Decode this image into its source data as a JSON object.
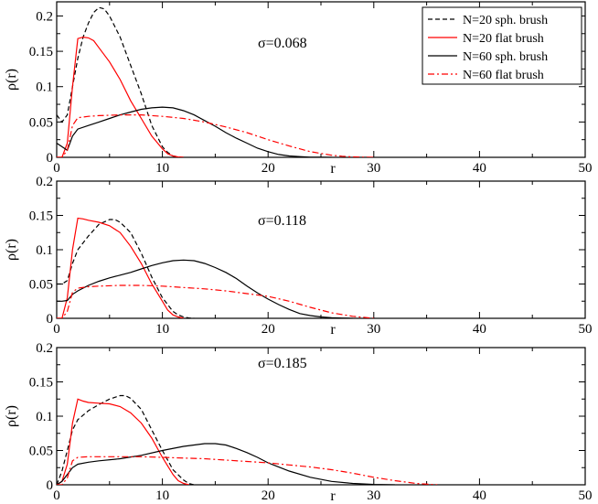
{
  "chart_data": [
    {
      "type": "line",
      "annotation": "σ=0.068",
      "xlabel": "r",
      "ylabel": "ρ(r)",
      "xlim": [
        0,
        50
      ],
      "ylim": [
        0,
        0.22
      ],
      "xticks": [
        "0",
        "10",
        "20",
        "30",
        "40",
        "50"
      ],
      "yticks": [
        "0",
        "0.05",
        "0.1",
        "0.15",
        "0.2"
      ],
      "ytick_values": [
        0,
        0.05,
        0.1,
        0.15,
        0.2
      ],
      "legend": {
        "position": "top-right"
      },
      "series": [
        {
          "name": "N=20 sph. brush",
          "color": "#000000",
          "dash": "dashed",
          "x": [
            0,
            0.5,
            1,
            1.5,
            2,
            2.5,
            3,
            3.5,
            4,
            4.5,
            5,
            5.5,
            6,
            7,
            8,
            9,
            10,
            10.5,
            11,
            11.5,
            12
          ],
          "y": [
            0.06,
            0.05,
            0.06,
            0.1,
            0.14,
            0.17,
            0.19,
            0.205,
            0.212,
            0.21,
            0.2,
            0.185,
            0.17,
            0.13,
            0.09,
            0.045,
            0.015,
            0.007,
            0.002,
            0.0005,
            0
          ]
        },
        {
          "name": "N=20 flat brush",
          "color": "#ff0000",
          "dash": "solid",
          "x": [
            0,
            0.5,
            1,
            1.5,
            2,
            2.5,
            3,
            3.5,
            4,
            5,
            6,
            7,
            8,
            9,
            10,
            10.5,
            11,
            11.5,
            12
          ],
          "y": [
            0,
            0,
            0.02,
            0.1,
            0.168,
            0.17,
            0.169,
            0.165,
            0.155,
            0.135,
            0.11,
            0.08,
            0.055,
            0.03,
            0.012,
            0.005,
            0.002,
            0.0005,
            0
          ]
        },
        {
          "name": "N=60 sph. brush",
          "color": "#000000",
          "dash": "solid",
          "x": [
            0,
            0.5,
            1,
            1.5,
            2,
            3,
            4,
            5,
            6,
            7,
            8,
            9,
            10,
            11,
            12,
            13,
            14,
            15,
            16,
            17,
            18,
            19,
            20,
            21,
            22,
            23,
            24,
            25,
            26
          ],
          "y": [
            0.02,
            0.015,
            0.01,
            0.03,
            0.04,
            0.045,
            0.05,
            0.055,
            0.06,
            0.064,
            0.068,
            0.07,
            0.071,
            0.07,
            0.066,
            0.06,
            0.052,
            0.044,
            0.035,
            0.027,
            0.02,
            0.013,
            0.008,
            0.004,
            0.002,
            0.001,
            0.0003,
            0.0001,
            0
          ]
        },
        {
          "name": "N=60 flat brush",
          "color": "#ff0000",
          "dash": "dashdot",
          "x": [
            0,
            0.5,
            1,
            1.5,
            2,
            3,
            4,
            6,
            8,
            10,
            12,
            14,
            16,
            18,
            20,
            22,
            24,
            26,
            27,
            28,
            29,
            30
          ],
          "y": [
            0,
            0,
            0.01,
            0.045,
            0.056,
            0.058,
            0.059,
            0.06,
            0.06,
            0.058,
            0.055,
            0.05,
            0.043,
            0.035,
            0.025,
            0.016,
            0.008,
            0.003,
            0.0015,
            0.0006,
            0.0002,
            0
          ]
        }
      ]
    },
    {
      "type": "line",
      "annotation": "σ=0.118",
      "xlabel": "r",
      "ylabel": "ρ(r)",
      "xlim": [
        0,
        50
      ],
      "ylim": [
        0,
        0.2
      ],
      "xticks": [
        "0",
        "10",
        "20",
        "30",
        "40",
        "50"
      ],
      "yticks": [
        "0",
        "0.05",
        "0.1",
        "0.15",
        "0.2"
      ],
      "ytick_values": [
        0,
        0.05,
        0.1,
        0.15,
        0.2
      ],
      "series": [
        {
          "name": "N=20 sph. brush",
          "color": "#000000",
          "dash": "dashed",
          "x": [
            0,
            0.5,
            1,
            1.5,
            2,
            3,
            4,
            5,
            5.5,
            6,
            7,
            8,
            9,
            10,
            11,
            11.5,
            12,
            12.5,
            13
          ],
          "y": [
            0.05,
            0.05,
            0.055,
            0.08,
            0.1,
            0.12,
            0.137,
            0.144,
            0.144,
            0.14,
            0.125,
            0.095,
            0.06,
            0.03,
            0.01,
            0.005,
            0.002,
            0.0005,
            0
          ]
        },
        {
          "name": "N=20 flat brush",
          "color": "#ff0000",
          "dash": "solid",
          "x": [
            0,
            0.5,
            1,
            1.5,
            2,
            2.5,
            3,
            4,
            5,
            6,
            7,
            8,
            9,
            10,
            10.5,
            11,
            11.5,
            12
          ],
          "y": [
            0,
            0,
            0.03,
            0.1,
            0.146,
            0.145,
            0.143,
            0.14,
            0.135,
            0.125,
            0.105,
            0.08,
            0.05,
            0.025,
            0.012,
            0.005,
            0.002,
            0
          ]
        },
        {
          "name": "N=60 sph. brush",
          "color": "#000000",
          "dash": "solid",
          "x": [
            0,
            0.5,
            1,
            1.5,
            2,
            3,
            4,
            5,
            6,
            7,
            8,
            9,
            10,
            11,
            12,
            13,
            14,
            15,
            16,
            17,
            18,
            19,
            20,
            21,
            22,
            23,
            24,
            25,
            26,
            27,
            28
          ],
          "y": [
            0.025,
            0.025,
            0.026,
            0.035,
            0.04,
            0.048,
            0.054,
            0.059,
            0.063,
            0.067,
            0.072,
            0.077,
            0.081,
            0.084,
            0.085,
            0.084,
            0.08,
            0.074,
            0.067,
            0.058,
            0.047,
            0.037,
            0.028,
            0.02,
            0.013,
            0.007,
            0.004,
            0.002,
            0.001,
            0.0004,
            0
          ]
        },
        {
          "name": "N=60 flat brush",
          "color": "#ff0000",
          "dash": "dashdot",
          "x": [
            0,
            0.5,
            1,
            1.5,
            2,
            3,
            4,
            6,
            8,
            10,
            12,
            14,
            16,
            18,
            20,
            22,
            24,
            26,
            28,
            30
          ],
          "y": [
            0,
            0,
            0.01,
            0.038,
            0.044,
            0.046,
            0.047,
            0.048,
            0.048,
            0.047,
            0.045,
            0.043,
            0.04,
            0.036,
            0.032,
            0.025,
            0.016,
            0.008,
            0.003,
            0
          ]
        }
      ]
    },
    {
      "type": "line",
      "annotation": "σ=0.185",
      "xlabel": "r",
      "ylabel": "ρ(r)",
      "xlim": [
        0,
        50
      ],
      "ylim": [
        0,
        0.2
      ],
      "xticks": [
        "0",
        "10",
        "20",
        "30",
        "40",
        "50"
      ],
      "yticks": [
        "0",
        "0.05",
        "0.1",
        "0.15",
        "0.2"
      ],
      "ytick_values": [
        0,
        0.05,
        0.1,
        0.15,
        0.2
      ],
      "series": [
        {
          "name": "N=20 sph. brush",
          "color": "#000000",
          "dash": "dashed",
          "x": [
            0,
            0.5,
            1,
            1.5,
            2,
            3,
            4,
            5,
            6,
            6.5,
            7,
            8,
            9,
            10,
            11,
            12,
            12.5,
            13
          ],
          "y": [
            0,
            0.02,
            0.05,
            0.08,
            0.095,
            0.108,
            0.117,
            0.125,
            0.13,
            0.13,
            0.126,
            0.11,
            0.08,
            0.05,
            0.022,
            0.007,
            0.002,
            0
          ]
        },
        {
          "name": "N=20 flat brush",
          "color": "#ff0000",
          "dash": "solid",
          "x": [
            0,
            0.5,
            1,
            1.5,
            2,
            2.5,
            3,
            4,
            5,
            6,
            7,
            8,
            9,
            10,
            11,
            11.5,
            12,
            12.5
          ],
          "y": [
            0,
            0.005,
            0.03,
            0.09,
            0.125,
            0.122,
            0.12,
            0.119,
            0.118,
            0.114,
            0.105,
            0.09,
            0.068,
            0.04,
            0.015,
            0.006,
            0.002,
            0
          ]
        },
        {
          "name": "N=60 sph. brush",
          "color": "#000000",
          "dash": "solid",
          "x": [
            0,
            0.5,
            1,
            1.5,
            2,
            3,
            4,
            6,
            8,
            10,
            12,
            13,
            14,
            15,
            16,
            17,
            18,
            19,
            20,
            22,
            24,
            26,
            28,
            30,
            32
          ],
          "y": [
            0,
            0.005,
            0.015,
            0.025,
            0.03,
            0.033,
            0.035,
            0.038,
            0.043,
            0.05,
            0.056,
            0.058,
            0.06,
            0.06,
            0.058,
            0.053,
            0.047,
            0.04,
            0.032,
            0.02,
            0.011,
            0.005,
            0.002,
            0.0005,
            0
          ]
        },
        {
          "name": "N=60 flat brush",
          "color": "#ff0000",
          "dash": "dashdot",
          "x": [
            0,
            0.5,
            1,
            1.5,
            2,
            3,
            4,
            6,
            8,
            10,
            12,
            14,
            16,
            18,
            20,
            22,
            24,
            26,
            28,
            30,
            32,
            34,
            36
          ],
          "y": [
            0,
            0,
            0.01,
            0.035,
            0.04,
            0.041,
            0.041,
            0.041,
            0.041,
            0.04,
            0.039,
            0.038,
            0.036,
            0.034,
            0.032,
            0.029,
            0.026,
            0.022,
            0.017,
            0.011,
            0.006,
            0.002,
            0
          ]
        }
      ]
    }
  ]
}
